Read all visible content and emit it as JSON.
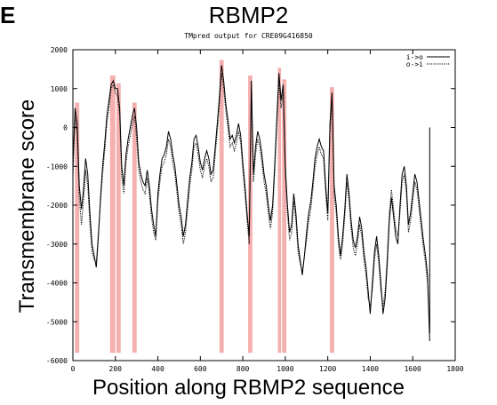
{
  "panel_label": "E",
  "chart_data": {
    "type": "line",
    "title": "RBMP2",
    "subtitle": "TMpred output for CRE09G416850",
    "xlabel": "Position along RBMP2 sequence",
    "ylabel": "Transmembrane score",
    "xlim": [
      0,
      1800
    ],
    "ylim": [
      -6000,
      2000
    ],
    "x_ticks": [
      0,
      200,
      400,
      600,
      800,
      1000,
      1200,
      1400,
      1600,
      1800
    ],
    "y_ticks": [
      -6000,
      -5000,
      -4000,
      -3000,
      -2000,
      -1000,
      0,
      1000,
      2000
    ],
    "legend_position": "top-right",
    "highlight_color": "#f4a6a6",
    "line_color": "#000000",
    "sequence_end": 1680,
    "highlighted_regions": [
      [
        10,
        30
      ],
      [
        175,
        200
      ],
      [
        205,
        225
      ],
      [
        280,
        300
      ],
      [
        690,
        710
      ],
      [
        825,
        845
      ],
      [
        965,
        980
      ],
      [
        985,
        1005
      ],
      [
        1210,
        1230
      ]
    ],
    "series": [
      {
        "name": "i->o",
        "style": "solid",
        "x": [
          0,
          10,
          20,
          30,
          40,
          50,
          60,
          70,
          80,
          90,
          100,
          110,
          120,
          130,
          140,
          150,
          160,
          170,
          180,
          190,
          200,
          210,
          220,
          230,
          240,
          250,
          260,
          270,
          280,
          290,
          300,
          310,
          320,
          330,
          340,
          350,
          360,
          370,
          380,
          390,
          400,
          410,
          420,
          430,
          440,
          450,
          460,
          470,
          480,
          490,
          500,
          510,
          520,
          530,
          540,
          550,
          560,
          570,
          580,
          590,
          600,
          610,
          620,
          630,
          640,
          650,
          660,
          670,
          680,
          690,
          700,
          710,
          720,
          730,
          740,
          750,
          760,
          770,
          780,
          790,
          800,
          810,
          820,
          830,
          840,
          850,
          860,
          870,
          880,
          890,
          900,
          910,
          920,
          930,
          940,
          950,
          960,
          970,
          980,
          990,
          1000,
          1010,
          1020,
          1030,
          1040,
          1050,
          1060,
          1070,
          1080,
          1090,
          1100,
          1110,
          1120,
          1130,
          1140,
          1150,
          1160,
          1170,
          1180,
          1190,
          1200,
          1210,
          1220,
          1230,
          1240,
          1250,
          1260,
          1270,
          1280,
          1290,
          1300,
          1310,
          1320,
          1330,
          1340,
          1350,
          1360,
          1370,
          1380,
          1390,
          1400,
          1410,
          1420,
          1430,
          1440,
          1450,
          1460,
          1470,
          1480,
          1490,
          1500,
          1510,
          1520,
          1530,
          1540,
          1550,
          1560,
          1570,
          1580,
          1590,
          1600,
          1610,
          1620,
          1630,
          1640,
          1650,
          1660,
          1670,
          1680
        ],
        "y": [
          -1000,
          500,
          100,
          -1500,
          -2100,
          -1600,
          -800,
          -1200,
          -2200,
          -3000,
          -3300,
          -3600,
          -2800,
          -1800,
          -1000,
          -400,
          300,
          700,
          1100,
          1200,
          1000,
          1000,
          500,
          -1000,
          -1500,
          -700,
          -300,
          0,
          300,
          500,
          0,
          -900,
          -1200,
          -1400,
          -1500,
          -1100,
          -1500,
          -2100,
          -2500,
          -2800,
          -1700,
          -1200,
          -800,
          -700,
          -500,
          -100,
          -300,
          -700,
          -1000,
          -1500,
          -2000,
          -2300,
          -2800,
          -2500,
          -1900,
          -1300,
          -900,
          -300,
          -200,
          -500,
          -900,
          -1100,
          -800,
          -600,
          -800,
          -1200,
          -1100,
          -500,
          100,
          800,
          1600,
          1200,
          600,
          200,
          -300,
          -200,
          -400,
          -200,
          100,
          -200,
          -900,
          -1500,
          -2200,
          -2800,
          1200,
          -1200,
          -500,
          -100,
          -300,
          -700,
          -1200,
          -1500,
          -2000,
          -2400,
          -2000,
          -1000,
          200,
          1400,
          700,
          1100,
          -1000,
          -2000,
          -2700,
          -2500,
          -1700,
          -2200,
          -3000,
          -3400,
          -3800,
          -3300,
          -2700,
          -2200,
          -1900,
          -1400,
          -800,
          -500,
          -300,
          -500,
          -600,
          -1500,
          -2200,
          100,
          900,
          -1500,
          -2000,
          -2800,
          -3300,
          -2800,
          -2100,
          -1200,
          -1700,
          -2400,
          -2900,
          -3100,
          -2800,
          -2300,
          -2600,
          -3200,
          -3600,
          -4200,
          -4800,
          -4000,
          -3200,
          -2800,
          -3300,
          -4000,
          -4800,
          -4400,
          -3500,
          -2400,
          -1800,
          -2300,
          -2800,
          -3000,
          -2000,
          -1200,
          -1000,
          -1500,
          -2500,
          -2200,
          -1700,
          -1200,
          -1400,
          -1900,
          -2400,
          -2900,
          -3300,
          -3800,
          -5500
        ]
      },
      {
        "name": "o->i",
        "style": "dotted",
        "x": [
          0,
          10,
          20,
          30,
          40,
          50,
          60,
          70,
          80,
          90,
          100,
          110,
          120,
          130,
          140,
          150,
          160,
          170,
          180,
          190,
          200,
          210,
          220,
          230,
          240,
          250,
          260,
          270,
          280,
          290,
          300,
          310,
          320,
          330,
          340,
          350,
          360,
          370,
          380,
          390,
          400,
          410,
          420,
          430,
          440,
          450,
          460,
          470,
          480,
          490,
          500,
          510,
          520,
          530,
          540,
          550,
          560,
          570,
          580,
          590,
          600,
          610,
          620,
          630,
          640,
          650,
          660,
          670,
          680,
          690,
          700,
          710,
          720,
          730,
          740,
          750,
          760,
          770,
          780,
          790,
          800,
          810,
          820,
          830,
          840,
          850,
          860,
          870,
          880,
          890,
          900,
          910,
          920,
          930,
          940,
          950,
          960,
          970,
          980,
          990,
          1000,
          1010,
          1020,
          1030,
          1040,
          1050,
          1060,
          1070,
          1080,
          1090,
          1100,
          1110,
          1120,
          1130,
          1140,
          1150,
          1160,
          1170,
          1180,
          1190,
          1200,
          1210,
          1220,
          1230,
          1240,
          1250,
          1260,
          1270,
          1280,
          1290,
          1300,
          1310,
          1320,
          1330,
          1340,
          1350,
          1360,
          1370,
          1380,
          1390,
          1400,
          1410,
          1420,
          1430,
          1440,
          1450,
          1460,
          1470,
          1480,
          1490,
          1500,
          1510,
          1520,
          1530,
          1540,
          1550,
          1560,
          1570,
          1580,
          1590,
          1600,
          1610,
          1620,
          1630,
          1640,
          1650,
          1660,
          1670,
          1680
        ],
        "y": [
          -1300,
          300,
          -200,
          -1800,
          -2500,
          -1900,
          -1100,
          -1500,
          -2500,
          -3200,
          -3400,
          -3500,
          -2700,
          -1900,
          -1200,
          -600,
          100,
          500,
          1000,
          1100,
          900,
          800,
          300,
          -1300,
          -1700,
          -900,
          -500,
          -200,
          100,
          300,
          -300,
          -1100,
          -1400,
          -1600,
          -1700,
          -1300,
          -1700,
          -2300,
          -2700,
          -2900,
          -1900,
          -1400,
          -1000,
          -900,
          -700,
          -300,
          -500,
          -900,
          -1200,
          -1700,
          -2200,
          -2500,
          -3000,
          -2700,
          -2100,
          -1500,
          -1100,
          -500,
          -400,
          -700,
          -1100,
          -1300,
          -1000,
          -800,
          -1000,
          -1400,
          -1300,
          -700,
          -100,
          600,
          1400,
          1000,
          400,
          0,
          -500,
          -400,
          -600,
          -400,
          -100,
          -400,
          -1100,
          -1700,
          -2400,
          -3000,
          900,
          -1400,
          -700,
          -300,
          -500,
          -900,
          -1400,
          -1700,
          -2200,
          -2600,
          -2200,
          -1200,
          0,
          1200,
          500,
          900,
          -1200,
          -2200,
          -2900,
          -2700,
          -1900,
          -2400,
          -3200,
          -3500,
          -3700,
          -3300,
          -2900,
          -2400,
          -2100,
          -1600,
          -1000,
          -700,
          -500,
          -700,
          -800,
          -1700,
          -2400,
          -100,
          700,
          -1700,
          -2200,
          -3000,
          -3400,
          -3000,
          -2300,
          -1400,
          -1900,
          -2600,
          -3100,
          -3300,
          -3000,
          -2500,
          -2800,
          -3400,
          -3800,
          -4400,
          -4600,
          -4200,
          -3400,
          -3000,
          -3500,
          -4200,
          -4600,
          -4200,
          -3300,
          -2200,
          -1600,
          -2100,
          -2600,
          -2800,
          -2200,
          -1400,
          -1200,
          -1700,
          -2700,
          -2400,
          -1900,
          -1400,
          -1600,
          -2100,
          -2600,
          -3100,
          -3500,
          -4000,
          -5300
        ]
      }
    ]
  }
}
